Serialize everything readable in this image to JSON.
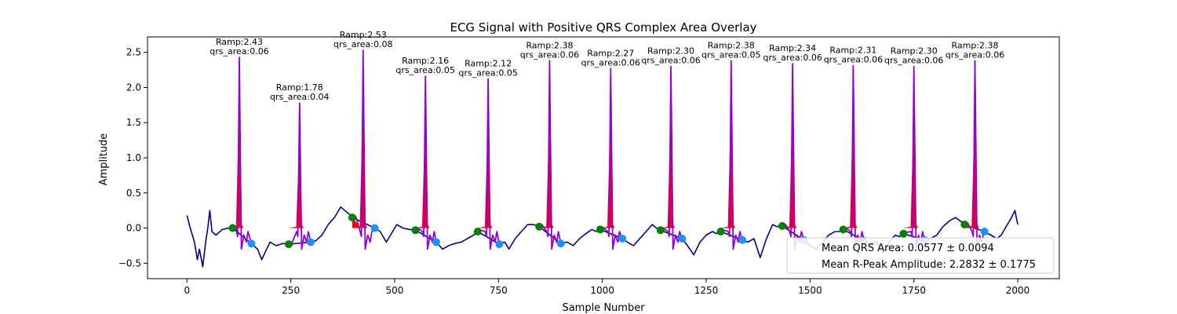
{
  "chart_data": {
    "type": "line",
    "title": "ECG Signal with Positive QRS Complex Area Overlay",
    "xlabel": "Sample Number",
    "ylabel": "Amplitude",
    "xlim": [
      -95,
      2100
    ],
    "ylim": [
      -0.72,
      2.72
    ],
    "x_ticks": [
      0,
      250,
      500,
      750,
      1000,
      1250,
      1500,
      1750,
      2000
    ],
    "x_tick_labels": [
      "0",
      "250",
      "500",
      "750",
      "1000",
      "1250",
      "1500",
      "1750",
      "2000"
    ],
    "y_ticks": [
      -0.5,
      0.0,
      0.5,
      1.0,
      1.5,
      2.0,
      2.5
    ],
    "y_tick_labels": [
      "−0.5",
      "0.0",
      "0.5",
      "1.0",
      "1.5",
      "2.0",
      "2.5"
    ],
    "grid": false,
    "legend_placement": "bottom-right",
    "legend": [
      "Mean QRS Area: 0.0577 ± 0.0094",
      "Mean R-Peak Amplitude: 2.2832 ± 0.1775"
    ],
    "colors": {
      "signal": "#00008b",
      "qrs": "#9400d3",
      "area_fill": "#ff0000",
      "onset_marker": "#008000",
      "offset_marker": "#1e90ff"
    },
    "beats": [
      {
        "r_x": 126,
        "r_amp": 2.43,
        "qrs_area": 0.06,
        "ramp_label": "Ramp:2.43",
        "area_label": "qrs_area:0.06",
        "onset": [
          110,
          0.0
        ],
        "offset": [
          155,
          -0.22
        ]
      },
      {
        "r_x": 271,
        "r_amp": 1.78,
        "qrs_area": 0.04,
        "ramp_label": "Ramp:1.78",
        "area_label": "qrs_area:0.04",
        "onset": [
          245,
          -0.23
        ],
        "offset": [
          298,
          -0.2
        ]
      },
      {
        "r_x": 424,
        "r_amp": 2.53,
        "qrs_area": 0.08,
        "ramp_label": "Ramp:2.53",
        "area_label": "qrs_area:0.08",
        "onset": [
          398,
          0.15
        ],
        "offset": [
          452,
          0.0
        ]
      },
      {
        "r_x": 574,
        "r_amp": 2.16,
        "qrs_area": 0.05,
        "ramp_label": "Ramp:2.16",
        "area_label": "qrs_area:0.05",
        "onset": [
          550,
          -0.03
        ],
        "offset": [
          600,
          -0.2
        ]
      },
      {
        "r_x": 725,
        "r_amp": 2.12,
        "qrs_area": 0.05,
        "ramp_label": "Ramp:2.12",
        "area_label": "qrs_area:0.05",
        "onset": [
          700,
          -0.05
        ],
        "offset": [
          752,
          -0.23
        ]
      },
      {
        "r_x": 873,
        "r_amp": 2.38,
        "qrs_area": 0.06,
        "ramp_label": "Ramp:2.38",
        "area_label": "qrs_area:0.06",
        "onset": [
          848,
          0.02
        ],
        "offset": [
          900,
          -0.22
        ]
      },
      {
        "r_x": 1020,
        "r_amp": 2.27,
        "qrs_area": 0.06,
        "ramp_label": "Ramp:2.27",
        "area_label": "qrs_area:0.06",
        "onset": [
          995,
          -0.02
        ],
        "offset": [
          1048,
          -0.15
        ]
      },
      {
        "r_x": 1165,
        "r_amp": 2.3,
        "qrs_area": 0.06,
        "ramp_label": "Ramp:2.30",
        "area_label": "qrs_area:0.06",
        "onset": [
          1140,
          -0.03
        ],
        "offset": [
          1192,
          -0.15
        ]
      },
      {
        "r_x": 1310,
        "r_amp": 2.38,
        "qrs_area": 0.05,
        "ramp_label": "Ramp:2.38",
        "area_label": "qrs_area:0.05",
        "onset": [
          1285,
          -0.05
        ],
        "offset": [
          1337,
          -0.17
        ]
      },
      {
        "r_x": 1458,
        "r_amp": 2.34,
        "qrs_area": 0.06,
        "ramp_label": "Ramp:2.34",
        "area_label": "qrs_area:0.06",
        "onset": [
          1433,
          0.03
        ],
        "offset": [
          1485,
          -0.17
        ]
      },
      {
        "r_x": 1604,
        "r_amp": 2.31,
        "qrs_area": 0.06,
        "ramp_label": "Ramp:2.31",
        "area_label": "qrs_area:0.06",
        "onset": [
          1580,
          -0.02
        ],
        "offset": [
          1630,
          -0.18
        ]
      },
      {
        "r_x": 1750,
        "r_amp": 2.3,
        "qrs_area": 0.06,
        "ramp_label": "Ramp:2.30",
        "area_label": "qrs_area:0.06",
        "onset": [
          1725,
          -0.08
        ],
        "offset": [
          1776,
          -0.17
        ]
      },
      {
        "r_x": 1897,
        "r_amp": 2.38,
        "qrs_area": 0.06,
        "ramp_label": "Ramp:2.38",
        "area_label": "qrs_area:0.06",
        "onset": [
          1872,
          0.05
        ],
        "offset": [
          1920,
          -0.05
        ]
      }
    ],
    "baseline_points": [
      [
        0,
        0.18
      ],
      [
        8,
        0.0
      ],
      [
        18,
        -0.2
      ],
      [
        25,
        -0.45
      ],
      [
        30,
        -0.3
      ],
      [
        38,
        -0.55
      ],
      [
        45,
        -0.2
      ],
      [
        50,
        0.0
      ],
      [
        55,
        0.25
      ],
      [
        60,
        -0.05
      ],
      [
        70,
        -0.1
      ],
      [
        85,
        -0.02
      ],
      [
        100,
        0.0
      ],
      [
        110,
        0.0
      ],
      [
        155,
        -0.22
      ],
      [
        170,
        -0.3
      ],
      [
        180,
        -0.45
      ],
      [
        190,
        -0.32
      ],
      [
        200,
        -0.2
      ],
      [
        215,
        -0.25
      ],
      [
        230,
        -0.22
      ],
      [
        245,
        -0.23
      ],
      [
        298,
        -0.2
      ],
      [
        310,
        -0.18
      ],
      [
        325,
        -0.1
      ],
      [
        340,
        0.05
      ],
      [
        355,
        0.15
      ],
      [
        370,
        0.3
      ],
      [
        380,
        0.25
      ],
      [
        390,
        0.2
      ],
      [
        398,
        0.15
      ],
      [
        452,
        0.0
      ],
      [
        465,
        -0.05
      ],
      [
        480,
        -0.2
      ],
      [
        490,
        -0.1
      ],
      [
        505,
        0.05
      ],
      [
        520,
        0.0
      ],
      [
        535,
        -0.02
      ],
      [
        550,
        -0.03
      ],
      [
        600,
        -0.2
      ],
      [
        615,
        -0.3
      ],
      [
        630,
        -0.25
      ],
      [
        645,
        -0.22
      ],
      [
        660,
        -0.2
      ],
      [
        675,
        -0.15
      ],
      [
        690,
        -0.1
      ],
      [
        700,
        -0.05
      ],
      [
        752,
        -0.23
      ],
      [
        765,
        -0.2
      ],
      [
        775,
        -0.3
      ],
      [
        790,
        -0.15
      ],
      [
        805,
        -0.05
      ],
      [
        820,
        0.05
      ],
      [
        835,
        0.05
      ],
      [
        848,
        0.02
      ],
      [
        900,
        -0.22
      ],
      [
        915,
        -0.2
      ],
      [
        930,
        -0.25
      ],
      [
        945,
        -0.15
      ],
      [
        960,
        -0.08
      ],
      [
        975,
        -0.02
      ],
      [
        985,
        -0.05
      ],
      [
        995,
        -0.02
      ],
      [
        1048,
        -0.15
      ],
      [
        1060,
        -0.2
      ],
      [
        1075,
        -0.25
      ],
      [
        1090,
        -0.15
      ],
      [
        1105,
        -0.05
      ],
      [
        1120,
        0.05
      ],
      [
        1130,
        0.0
      ],
      [
        1140,
        -0.03
      ],
      [
        1192,
        -0.15
      ],
      [
        1205,
        -0.25
      ],
      [
        1220,
        -0.38
      ],
      [
        1235,
        -0.2
      ],
      [
        1250,
        -0.1
      ],
      [
        1265,
        -0.05
      ],
      [
        1275,
        -0.08
      ],
      [
        1285,
        -0.05
      ],
      [
        1337,
        -0.17
      ],
      [
        1350,
        -0.2
      ],
      [
        1365,
        -0.15
      ],
      [
        1380,
        -0.42
      ],
      [
        1395,
        -0.15
      ],
      [
        1410,
        0.05
      ],
      [
        1420,
        0.02
      ],
      [
        1433,
        0.03
      ],
      [
        1485,
        -0.17
      ],
      [
        1500,
        -0.25
      ],
      [
        1515,
        -0.3
      ],
      [
        1530,
        -0.2
      ],
      [
        1545,
        -0.1
      ],
      [
        1560,
        -0.05
      ],
      [
        1570,
        -0.05
      ],
      [
        1580,
        -0.02
      ],
      [
        1630,
        -0.18
      ],
      [
        1645,
        -0.25
      ],
      [
        1660,
        -0.2
      ],
      [
        1675,
        -0.35
      ],
      [
        1690,
        -0.2
      ],
      [
        1705,
        -0.1
      ],
      [
        1715,
        -0.12
      ],
      [
        1725,
        -0.08
      ],
      [
        1776,
        -0.17
      ],
      [
        1790,
        -0.15
      ],
      [
        1805,
        -0.1
      ],
      [
        1820,
        0.02
      ],
      [
        1835,
        0.1
      ],
      [
        1850,
        0.15
      ],
      [
        1862,
        0.1
      ],
      [
        1872,
        0.05
      ],
      [
        1920,
        -0.05
      ],
      [
        1935,
        -0.1
      ],
      [
        1950,
        -0.15
      ],
      [
        1960,
        -0.1
      ],
      [
        1975,
        0.05
      ],
      [
        1985,
        0.15
      ],
      [
        1993,
        0.25
      ],
      [
        2000,
        0.05
      ]
    ]
  }
}
